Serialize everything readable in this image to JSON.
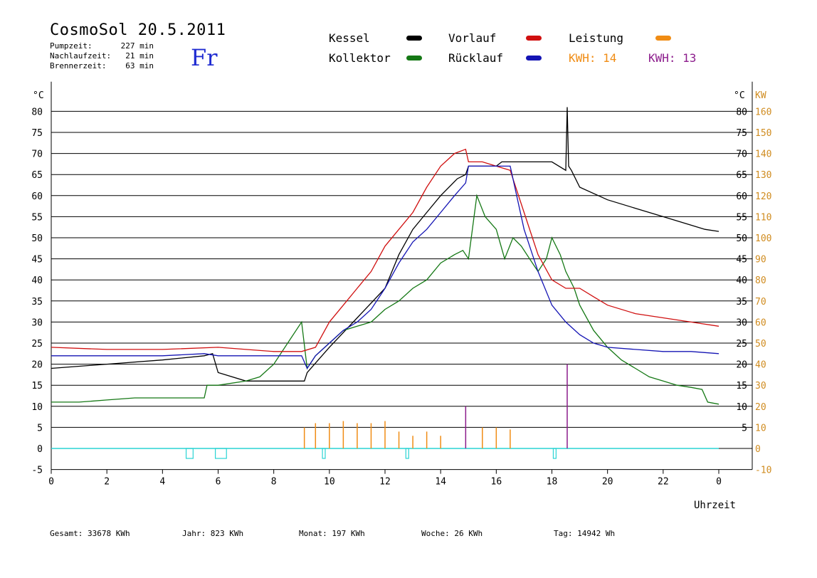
{
  "header": {
    "title": "CosmoSol 20.5.2011",
    "day": "Fr",
    "meta": [
      {
        "label": "Pumpzeit:",
        "value": "227 min"
      },
      {
        "label": "Nachlaufzeit:",
        "value": "21 min"
      },
      {
        "label": "Brennerzeit:",
        "value": "63 min"
      }
    ]
  },
  "legend": {
    "kessel": "Kessel",
    "kollektor": "Kollektor",
    "vorlauf": "Vorlauf",
    "ruecklauf": "Rücklauf",
    "leistung": "Leistung",
    "kwh_orange": "KWH: 14",
    "kwh_purple_label": "KWH:",
    "kwh_purple_value": "13"
  },
  "colors": {
    "kessel": "#000000",
    "kollektor": "#157815",
    "vorlauf": "#d01010",
    "ruecklauf": "#1414b4",
    "leistung": "#f08c14",
    "kwh_purple": "#8c1c8c",
    "pump": "#2ad4d4",
    "axis_right_kw": "#d08c20"
  },
  "footer": {
    "gesamt": "Gesamt:  33678 KWh",
    "jahr": "Jahr:    823 KWh",
    "monat": "Monat:    197 KWh",
    "woche": "Woche:     26 KWh",
    "tag": "Tag:  14942 Wh"
  },
  "chart_data": {
    "type": "line",
    "xlabel": "Uhrzeit",
    "ylabel_left": "°C",
    "ylabel_right": "°C",
    "ylabel_right2": "KW",
    "xlim": [
      0,
      24
    ],
    "ylim": [
      -5,
      85
    ],
    "grid": true,
    "x_ticks": [
      "0",
      "2",
      "4",
      "6",
      "8",
      "10",
      "12",
      "14",
      "16",
      "18",
      "20",
      "22",
      "0"
    ],
    "y_ticks_left": [
      -5,
      0,
      5,
      10,
      15,
      20,
      25,
      30,
      35,
      40,
      45,
      50,
      55,
      60,
      65,
      70,
      75,
      80
    ],
    "y_ticks_right": [
      5,
      10,
      15,
      20,
      25,
      30,
      35,
      40,
      45,
      50,
      55,
      60,
      65,
      70,
      75,
      80
    ],
    "y_ticks_kw": [
      -10,
      0,
      10,
      20,
      30,
      40,
      50,
      60,
      70,
      80,
      90,
      100,
      110,
      120,
      130,
      140,
      150,
      160
    ],
    "series": [
      {
        "name": "Kessel",
        "key": "kessel",
        "x": [
          0,
          2,
          4,
          5.5,
          5.8,
          6.0,
          7.0,
          8.0,
          9.1,
          9.2,
          10,
          11,
          12,
          12.5,
          13,
          13.5,
          14,
          14.6,
          14.9,
          15,
          15.5,
          16,
          16.2,
          16.5,
          17,
          18,
          18.5,
          18.55,
          18.6,
          18.7,
          19,
          20,
          21,
          22,
          23,
          23.5,
          24
        ],
        "y": [
          19,
          20,
          21,
          22,
          22.5,
          18,
          16,
          16,
          16,
          18,
          24,
          31,
          38,
          46,
          52,
          56,
          60,
          64,
          65,
          67,
          67,
          67,
          68,
          68,
          68,
          68,
          66,
          81,
          67,
          66,
          62,
          59,
          57,
          55,
          53,
          52,
          51.5
        ]
      },
      {
        "name": "Kollektor",
        "key": "kollektor",
        "x": [
          0,
          1,
          2,
          3,
          4,
          5,
          5.5,
          5.6,
          6,
          7,
          7.5,
          8,
          8.5,
          9,
          9.2,
          9.5,
          10,
          10.5,
          11,
          11.5,
          12,
          12.5,
          13,
          13.5,
          14,
          14.5,
          14.8,
          15,
          15.3,
          15.6,
          16,
          16.3,
          16.6,
          16.9,
          17.2,
          17.5,
          17.8,
          18,
          18.3,
          18.5,
          18.8,
          19,
          19.5,
          20,
          20.5,
          21,
          21.5,
          22,
          22.5,
          23,
          23.4,
          23.6,
          24
        ],
        "y": [
          11,
          11,
          11.5,
          12,
          12,
          12,
          12,
          15,
          15,
          16,
          17,
          20,
          25,
          30,
          19,
          22,
          25,
          28,
          29,
          30,
          33,
          35,
          38,
          40,
          44,
          46,
          47,
          45,
          60,
          55,
          52,
          45,
          50,
          48,
          45,
          42,
          45,
          50,
          46,
          42,
          38,
          34,
          28,
          24,
          21,
          19,
          17,
          16,
          15,
          14.5,
          14,
          11,
          10.5
        ]
      },
      {
        "name": "Vorlauf",
        "key": "vorlauf",
        "x": [
          0,
          2,
          4,
          6,
          7,
          8,
          9,
          9.5,
          10,
          10.5,
          11,
          11.5,
          12,
          12.5,
          13,
          13.5,
          14,
          14.5,
          14.9,
          15,
          15.5,
          16,
          16.5,
          17,
          17.5,
          18,
          18.5,
          19,
          19.5,
          20,
          21,
          22,
          23,
          24
        ],
        "y": [
          24,
          23.5,
          23.5,
          24,
          23.5,
          23,
          23,
          24,
          30,
          34,
          38,
          42,
          48,
          52,
          56,
          62,
          67,
          70,
          71,
          68,
          68,
          67,
          66,
          56,
          46,
          40,
          38,
          38,
          36,
          34,
          32,
          31,
          30,
          29
        ]
      },
      {
        "name": "Rücklauf",
        "key": "ruecklauf",
        "x": [
          0,
          2,
          4,
          5.5,
          6,
          7,
          8,
          9,
          9.2,
          9.5,
          10,
          10.5,
          11,
          11.5,
          12,
          12.5,
          13,
          13.5,
          14,
          14.5,
          14.9,
          15,
          15.5,
          16,
          16.5,
          17,
          17.5,
          18,
          18.5,
          19,
          19.5,
          20,
          21,
          22,
          23,
          24
        ],
        "y": [
          22,
          22,
          22,
          22.5,
          22,
          22,
          22,
          22,
          19,
          22,
          25,
          28,
          30,
          33,
          38,
          44,
          49,
          52,
          56,
          60,
          63,
          67,
          67,
          67,
          67,
          52,
          42,
          34,
          30,
          27,
          25,
          24,
          23.5,
          23,
          23,
          22.5
        ]
      }
    ],
    "power_kw": [
      {
        "x": 9.1,
        "y": 10
      },
      {
        "x": 9.5,
        "y": 12
      },
      {
        "x": 10,
        "y": 12
      },
      {
        "x": 10.5,
        "y": 13
      },
      {
        "x": 11,
        "y": 12
      },
      {
        "x": 11.5,
        "y": 12
      },
      {
        "x": 12,
        "y": 13
      },
      {
        "x": 12.5,
        "y": 8
      },
      {
        "x": 13,
        "y": 6
      },
      {
        "x": 13.5,
        "y": 8
      },
      {
        "x": 14,
        "y": 6
      },
      {
        "x": 14.9,
        "y": 20
      },
      {
        "x": 15.5,
        "y": 10
      },
      {
        "x": 16,
        "y": 10
      },
      {
        "x": 16.5,
        "y": 9
      },
      {
        "x": 18.55,
        "y": 40
      }
    ],
    "pump_on_intervals": [
      [
        4.85,
        5.1
      ],
      [
        5.9,
        6.3
      ],
      [
        9.75,
        9.85
      ],
      [
        12.75,
        12.85
      ],
      [
        18.05,
        18.15
      ]
    ]
  }
}
